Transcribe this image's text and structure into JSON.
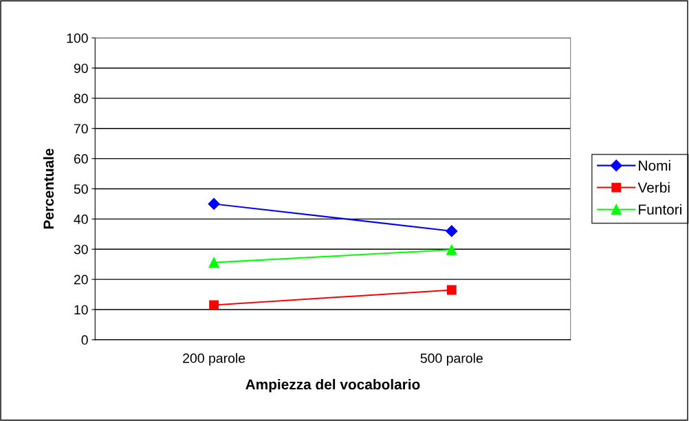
{
  "chart_data": {
    "type": "line",
    "xlabel": "Ampiezza del vocabolario",
    "ylabel": "Percentuale",
    "categories": [
      "200 parole",
      "500 parole"
    ],
    "series": [
      {
        "name": "Nomi",
        "color": "#0000ff",
        "values": [
          45,
          36
        ],
        "marker": "diamond"
      },
      {
        "name": "Verbi",
        "color": "#ff0000",
        "values": [
          11.5,
          16.5
        ],
        "marker": "square"
      },
      {
        "name": "Funtori",
        "color": "#00ff00",
        "values": [
          25.6,
          29.8
        ],
        "marker": "triangle"
      }
    ],
    "ylim": [
      0,
      100
    ],
    "yticks": [
      0,
      10,
      20,
      30,
      40,
      50,
      60,
      70,
      80,
      90,
      100
    ],
    "grid": "y",
    "legend": "right",
    "line_style": "solid"
  }
}
